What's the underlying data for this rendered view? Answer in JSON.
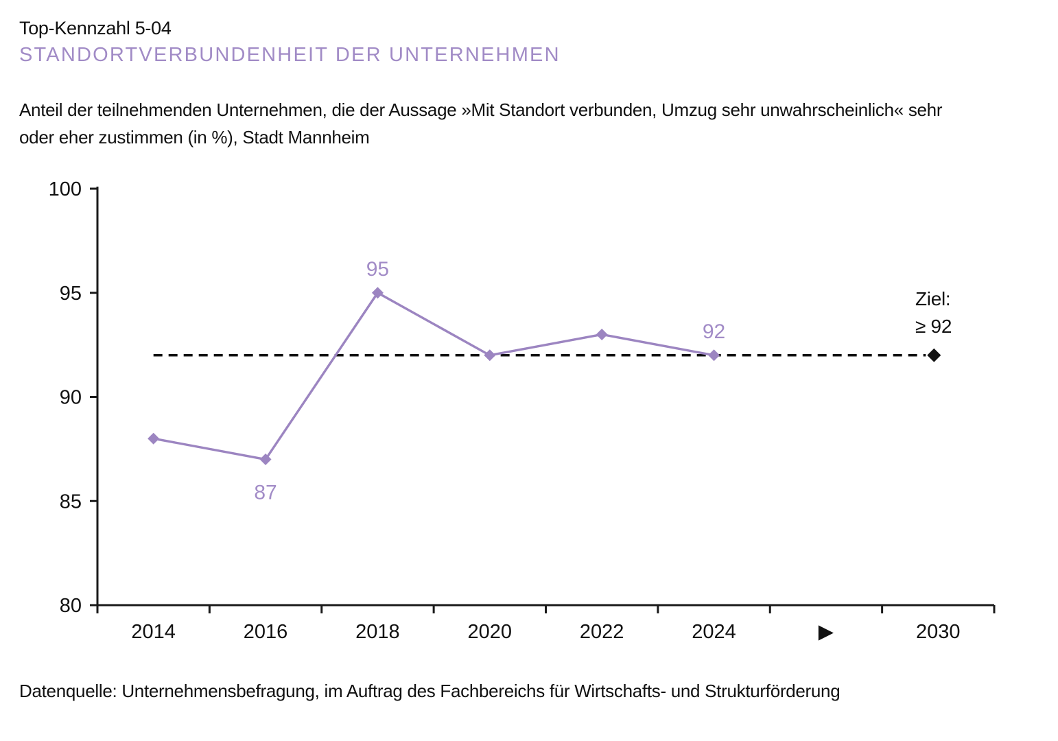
{
  "header": {
    "kicker": "Top-Kennzahl 5-04",
    "title": "STANDORTVERBUNDENHEIT DER UNTERNEHMEN",
    "description_line1": "Anteil der teilnehmenden Unternehmen, die der Aussage »Mit Standort verbunden, Umzug sehr unwahrscheinlich« sehr",
    "description_line2": "oder eher zustimmen (in %), Stadt Mannheim"
  },
  "footer": {
    "source": "Datenquelle: Unternehmensbefragung, im Auftrag des Fachbereichs für Wirtschafts- und Strukturförderung"
  },
  "colors": {
    "text": "#111111",
    "title": "#a18bc6",
    "series": "#9c85c1",
    "point_label": "#a28cc7",
    "axis": "#1a1a1a",
    "target_line": "#111111"
  },
  "chart_data": {
    "type": "line",
    "categories": [
      "2014",
      "2016",
      "2018",
      "2020",
      "2022",
      "2024",
      "▶",
      "2030"
    ],
    "values": [
      88,
      87,
      95,
      92,
      93,
      92,
      null,
      null
    ],
    "point_labels": [
      {
        "index": 1,
        "category": "2016",
        "text": "87",
        "position": "below"
      },
      {
        "index": 2,
        "category": "2018",
        "text": "95",
        "position": "above"
      },
      {
        "index": 5,
        "category": "2024",
        "text": "92",
        "position": "above"
      }
    ],
    "target": {
      "label": "Ziel:",
      "value_label": "≥ 92",
      "value": 92,
      "category": "2030",
      "index": 7,
      "line_style": "dashed",
      "marker": "black-diamond"
    },
    "ylim": [
      80,
      100
    ],
    "yticks": [
      80,
      85,
      90,
      95,
      100
    ],
    "xlabel": "",
    "ylabel": "",
    "grid": false,
    "legend": "none"
  }
}
